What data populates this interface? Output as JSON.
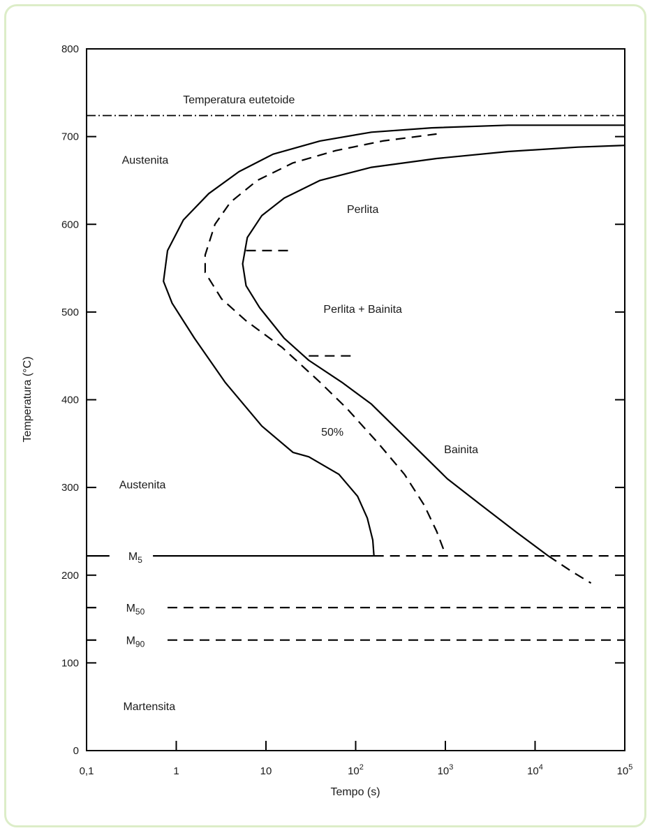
{
  "chart_data": {
    "type": "line",
    "title": "",
    "xlabel": "Tempo (s)",
    "ylabel": "Temperatura (°C)",
    "x_scale": "log",
    "xlim": [
      0.1,
      100000
    ],
    "ylim": [
      0,
      800
    ],
    "grid": false,
    "legend": "none",
    "x_ticks": [
      {
        "value": 0.1,
        "label": "0,1",
        "exp": ""
      },
      {
        "value": 1,
        "label": "1",
        "exp": ""
      },
      {
        "value": 10,
        "label": "10",
        "exp": ""
      },
      {
        "value": 100,
        "label": "10",
        "exp": "2"
      },
      {
        "value": 1000,
        "label": "10",
        "exp": "3"
      },
      {
        "value": 10000,
        "label": "10",
        "exp": "4"
      },
      {
        "value": 100000,
        "label": "10",
        "exp": "5"
      }
    ],
    "y_ticks": [
      {
        "value": 0,
        "label": "0"
      },
      {
        "value": 100,
        "label": "100"
      },
      {
        "value": 200,
        "label": "200"
      },
      {
        "value": 300,
        "label": "300"
      },
      {
        "value": 400,
        "label": "400"
      },
      {
        "value": 500,
        "label": "500"
      },
      {
        "value": 600,
        "label": "600"
      },
      {
        "value": 700,
        "label": "700"
      },
      {
        "value": 800,
        "label": "800"
      }
    ],
    "series": [
      {
        "style": "solid",
        "points": [
          [
            160,
            222
          ],
          [
            155,
            240
          ],
          [
            135,
            265
          ],
          [
            105,
            290
          ],
          [
            65,
            315
          ],
          [
            30,
            335
          ],
          [
            20,
            340
          ],
          [
            9,
            370
          ],
          [
            3.5,
            420
          ],
          [
            1.6,
            470
          ],
          [
            0.9,
            510
          ],
          [
            0.72,
            535
          ],
          [
            0.8,
            570
          ],
          [
            1.2,
            605
          ],
          [
            2.3,
            635
          ],
          [
            5,
            660
          ],
          [
            12,
            680
          ],
          [
            40,
            695
          ],
          [
            150,
            705
          ],
          [
            700,
            710
          ],
          [
            5000,
            713
          ],
          [
            100000,
            713
          ]
        ]
      },
      {
        "style": "dashed",
        "points": [
          [
            950,
            230
          ],
          [
            800,
            250
          ],
          [
            580,
            280
          ],
          [
            350,
            315
          ],
          [
            180,
            350
          ],
          [
            80,
            390
          ],
          [
            40,
            420
          ],
          [
            15,
            460
          ],
          [
            6,
            490
          ],
          [
            3.2,
            515
          ],
          [
            2.1,
            545
          ],
          [
            2.1,
            565
          ],
          [
            2.7,
            600
          ],
          [
            4,
            625
          ],
          [
            8,
            650
          ],
          [
            20,
            670
          ],
          [
            60,
            684
          ],
          [
            200,
            695
          ],
          [
            800,
            703
          ]
        ]
      },
      {
        "style": "solid",
        "points": [
          [
            14000,
            222
          ],
          [
            6000,
            250
          ],
          [
            2500,
            280
          ],
          [
            1050,
            310
          ],
          [
            420,
            350
          ],
          [
            150,
            395
          ],
          [
            70,
            420
          ],
          [
            30,
            445
          ],
          [
            16,
            470
          ],
          [
            8.5,
            505
          ],
          [
            6,
            530
          ],
          [
            5.5,
            555
          ],
          [
            6.2,
            585
          ],
          [
            9,
            610
          ],
          [
            16,
            630
          ],
          [
            40,
            650
          ],
          [
            150,
            665
          ],
          [
            800,
            675
          ],
          [
            5000,
            683
          ],
          [
            30000,
            688
          ],
          [
            100000,
            690
          ]
        ]
      },
      {
        "style": "dashed",
        "points": [
          [
            14000,
            222
          ],
          [
            25000,
            205
          ],
          [
            42000,
            191
          ]
        ]
      },
      {
        "style": "solid",
        "points": [
          [
            0.1,
            222
          ],
          [
            0.18,
            222
          ]
        ]
      },
      {
        "style": "solid",
        "points": [
          [
            0.55,
            222
          ],
          [
            160,
            222
          ]
        ]
      },
      {
        "style": "dashed",
        "points": [
          [
            160,
            222
          ],
          [
            100000,
            222
          ]
        ]
      },
      {
        "style": "dashed",
        "points": [
          [
            0.1,
            163
          ],
          [
            0.15,
            163
          ]
        ]
      },
      {
        "style": "dashed",
        "points": [
          [
            0.8,
            163
          ],
          [
            100000,
            163
          ]
        ]
      },
      {
        "style": "dashed",
        "points": [
          [
            0.1,
            126
          ],
          [
            0.15,
            126
          ]
        ]
      },
      {
        "style": "dashed",
        "points": [
          [
            0.8,
            126
          ],
          [
            100000,
            126
          ]
        ]
      },
      {
        "style": "dashdot",
        "points": [
          [
            0.1,
            724
          ],
          [
            100000,
            724
          ]
        ]
      },
      {
        "style": "dashed",
        "points": [
          [
            6,
            570
          ],
          [
            20,
            570
          ]
        ]
      },
      {
        "style": "dashed",
        "points": [
          [
            30,
            450
          ],
          [
            100,
            450
          ]
        ]
      }
    ],
    "annotations": [
      {
        "text": "Temperatura eutetoide",
        "x": 5,
        "y": 742
      },
      {
        "text": "Austenita",
        "x": 0.45,
        "y": 673
      },
      {
        "text": "Perlita",
        "x": 120,
        "y": 617
      },
      {
        "text": "Perlita + Bainita",
        "x": 120,
        "y": 503
      },
      {
        "text": "50%",
        "x": 55,
        "y": 363
      },
      {
        "text": "Bainita",
        "x": 1500,
        "y": 343
      },
      {
        "text": "Austenita",
        "x": 0.42,
        "y": 303
      },
      {
        "text": "Martensita",
        "x": 0.5,
        "y": 50
      }
    ],
    "martensite_labels": [
      {
        "main": "M",
        "sub": "5",
        "y": 222
      },
      {
        "main": "M",
        "sub": "50",
        "y": 163
      },
      {
        "main": "M",
        "sub": "90",
        "y": 126
      }
    ]
  }
}
